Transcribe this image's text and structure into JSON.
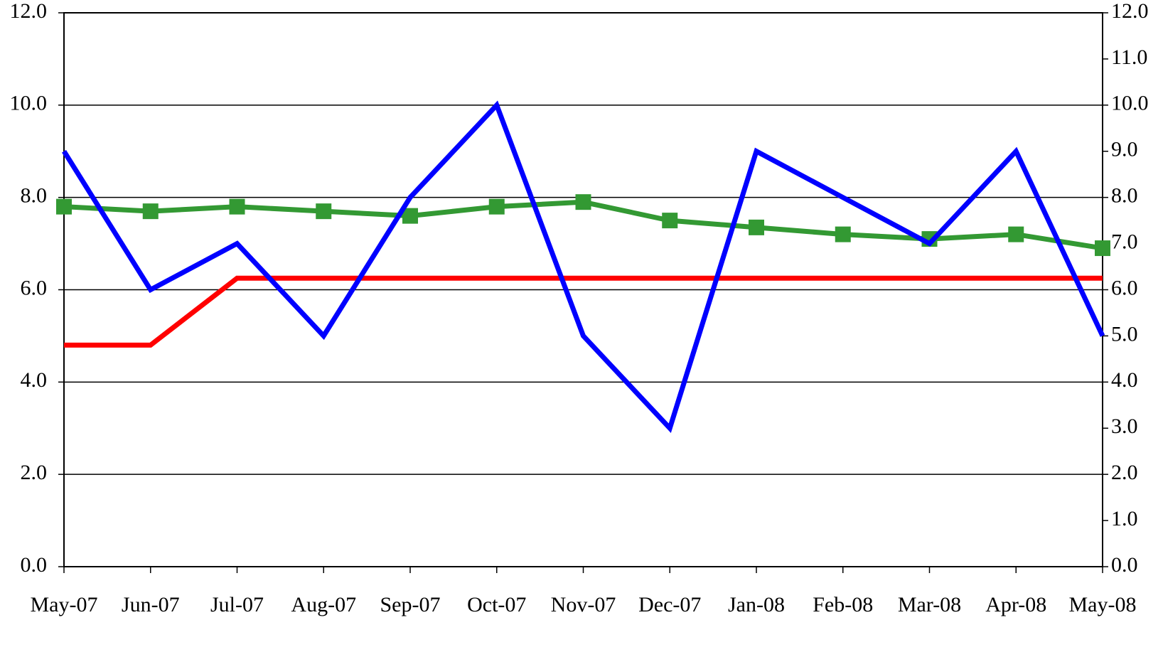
{
  "chart_data": {
    "type": "line",
    "categories": [
      "May-07",
      "Jun-07",
      "Jul-07",
      "Aug-07",
      "Sep-07",
      "Oct-07",
      "Nov-07",
      "Dec-07",
      "Jan-08",
      "Feb-08",
      "Mar-08",
      "Apr-08",
      "May-08"
    ],
    "series": [
      {
        "color": "#ff0000",
        "values": [
          4.8,
          4.8,
          6.25,
          6.25,
          6.25,
          6.25,
          6.25,
          6.25,
          6.25,
          6.25,
          6.25,
          6.25,
          6.25
        ]
      },
      {
        "color": "#339933",
        "marker": "square",
        "values": [
          7.8,
          7.7,
          7.8,
          7.7,
          7.6,
          7.8,
          7.9,
          7.5,
          7.35,
          7.2,
          7.1,
          7.2,
          6.9
        ]
      },
      {
        "color": "#0000ff",
        "axis": "y2",
        "values": [
          9,
          6,
          7,
          5,
          8,
          10,
          5,
          3,
          9,
          8,
          7,
          9,
          5
        ]
      }
    ],
    "ylim": [
      0,
      12
    ],
    "yticks": [
      {
        "value": 0,
        "label": "0.0"
      },
      {
        "value": 2,
        "label": "2.0"
      },
      {
        "value": 4,
        "label": "4.0"
      },
      {
        "value": 6,
        "label": "6.0"
      },
      {
        "value": 8,
        "label": "8.0"
      },
      {
        "value": 10,
        "label": "10.0"
      },
      {
        "value": 12,
        "label": "12.0"
      }
    ],
    "y2lim": [
      0,
      12
    ],
    "y2ticks": [
      {
        "value": 0,
        "label": "0.0"
      },
      {
        "value": 1,
        "label": "1.0"
      },
      {
        "value": 2,
        "label": "2.0"
      },
      {
        "value": 3,
        "label": "3.0"
      },
      {
        "value": 4,
        "label": "4.0"
      },
      {
        "value": 5,
        "label": "5.0"
      },
      {
        "value": 6,
        "label": "6.0"
      },
      {
        "value": 7,
        "label": "7.0"
      },
      {
        "value": 8,
        "label": "8.0"
      },
      {
        "value": 9,
        "label": "9.0"
      },
      {
        "value": 10,
        "label": "10.0"
      },
      {
        "value": 11,
        "label": "11.0"
      },
      {
        "value": 12,
        "label": "12.0"
      }
    ],
    "grid": true
  }
}
